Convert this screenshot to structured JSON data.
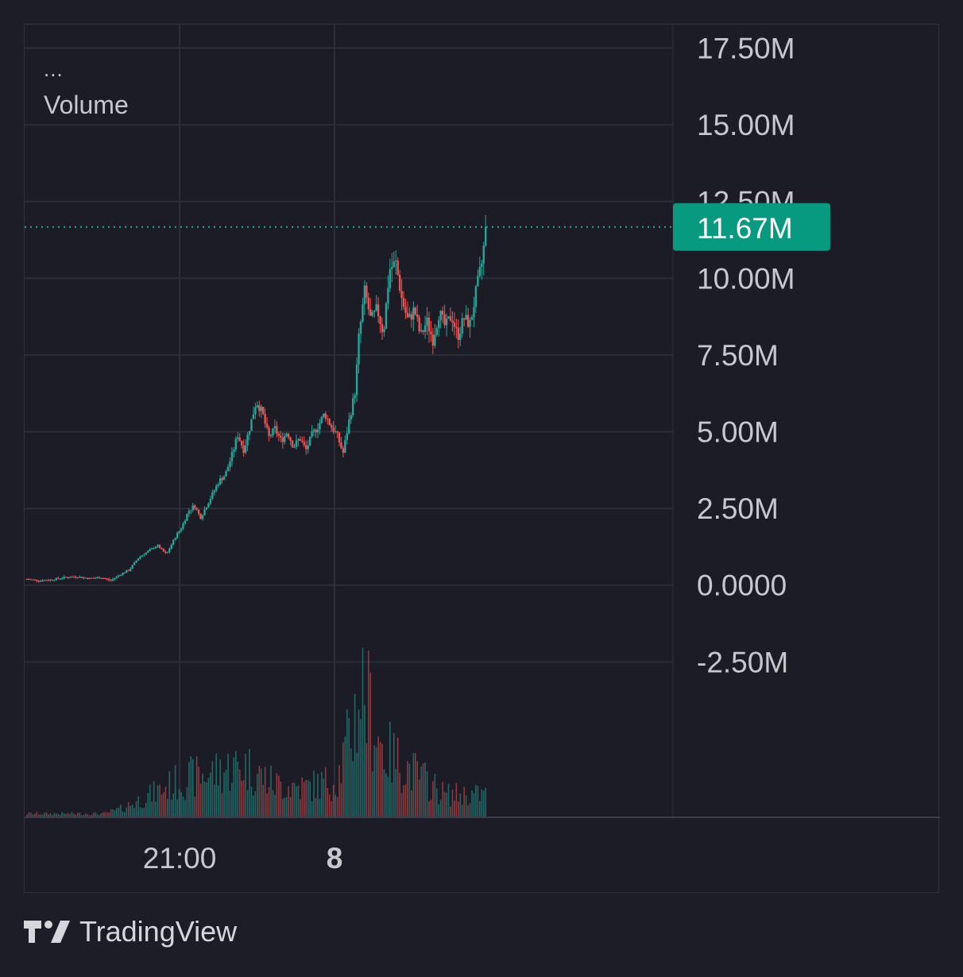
{
  "legend": {
    "more": "...",
    "indicator": "Volume"
  },
  "logo": {
    "text": "TradingView",
    "icon": "tradingview-logo-icon"
  },
  "colors": {
    "up": "#26a69a",
    "down": "#ef5350",
    "grid": "#2b2d38",
    "axis_text": "#c7c8cf",
    "current_badge": "#089981",
    "background": "#1b1c26"
  },
  "chart_data": {
    "type": "candlestick",
    "title": "",
    "y_axis": {
      "ticks": [
        17.5,
        15.0,
        12.5,
        10.0,
        7.5,
        5.0,
        2.5,
        0.0,
        -2.5
      ],
      "tick_labels": [
        "17.50M",
        "15.00M",
        "12.50M",
        "10.00M",
        "7.50M",
        "5.00M",
        "2.50M",
        "0.0000",
        "-2.50M"
      ],
      "ylim": [
        -3.5,
        17.9
      ],
      "unit": "M"
    },
    "x_axis": {
      "ticks": [
        "21:00",
        "8"
      ]
    },
    "current_value": {
      "value": 11.67,
      "label": "11.67M"
    },
    "price_path": [
      [
        0,
        0.2
      ],
      [
        0.04,
        0.15
      ],
      [
        0.08,
        0.18
      ],
      [
        0.12,
        0.25
      ],
      [
        0.16,
        0.28
      ],
      [
        0.2,
        0.22
      ],
      [
        0.24,
        0.25
      ],
      [
        0.27,
        0.15
      ],
      [
        0.3,
        0.35
      ],
      [
        0.33,
        0.5
      ],
      [
        0.36,
        0.9
      ],
      [
        0.39,
        1.1
      ],
      [
        0.42,
        1.3
      ],
      [
        0.45,
        1.0
      ],
      [
        0.48,
        1.6
      ],
      [
        0.5,
        1.9
      ],
      [
        0.52,
        2.4
      ],
      [
        0.54,
        2.6
      ],
      [
        0.56,
        2.2
      ],
      [
        0.58,
        2.6
      ],
      [
        0.6,
        3.0
      ],
      [
        0.62,
        3.4
      ],
      [
        0.64,
        3.6
      ],
      [
        0.66,
        4.2
      ],
      [
        0.68,
        4.9
      ],
      [
        0.7,
        4.4
      ],
      [
        0.72,
        5.2
      ],
      [
        0.74,
        6.0
      ],
      [
        0.76,
        5.6
      ],
      [
        0.78,
        4.8
      ],
      [
        0.8,
        5.1
      ],
      [
        0.82,
        4.7
      ],
      [
        0.84,
        5.0
      ],
      [
        0.86,
        4.5
      ],
      [
        0.88,
        4.8
      ],
      [
        0.9,
        4.4
      ],
      [
        0.92,
        4.9
      ],
      [
        0.94,
        5.2
      ],
      [
        0.96,
        5.6
      ],
      [
        0.98,
        5.2
      ],
      [
        1.0,
        4.9
      ],
      [
        1.02,
        4.3
      ],
      [
        1.04,
        5.4
      ],
      [
        1.06,
        6.4
      ],
      [
        1.07,
        8.0
      ],
      [
        1.09,
        9.6
      ],
      [
        1.11,
        8.6
      ],
      [
        1.13,
        9.0
      ],
      [
        1.15,
        8.2
      ],
      [
        1.17,
        10.3
      ],
      [
        1.19,
        10.5
      ],
      [
        1.21,
        9.3
      ],
      [
        1.23,
        8.6
      ],
      [
        1.25,
        9.0
      ],
      [
        1.27,
        8.1
      ],
      [
        1.29,
        8.6
      ],
      [
        1.31,
        8.0
      ],
      [
        1.33,
        8.9
      ],
      [
        1.35,
        8.4
      ],
      [
        1.37,
        8.8
      ],
      [
        1.39,
        8.1
      ],
      [
        1.41,
        8.7
      ],
      [
        1.43,
        8.5
      ],
      [
        1.45,
        9.6
      ],
      [
        1.47,
        10.6
      ],
      [
        1.48,
        11.67
      ]
    ],
    "volume_profile": [
      [
        0,
        0.02
      ],
      [
        0.25,
        0.02
      ],
      [
        0.3,
        0.05
      ],
      [
        0.4,
        0.15
      ],
      [
        0.5,
        0.25
      ],
      [
        0.6,
        0.3
      ],
      [
        0.7,
        0.35
      ],
      [
        0.8,
        0.22
      ],
      [
        0.9,
        0.2
      ],
      [
        1.0,
        0.25
      ],
      [
        1.05,
        0.6
      ],
      [
        1.08,
        0.9
      ],
      [
        1.15,
        0.45
      ],
      [
        1.25,
        0.3
      ],
      [
        1.35,
        0.15
      ],
      [
        1.48,
        0.15
      ]
    ]
  }
}
